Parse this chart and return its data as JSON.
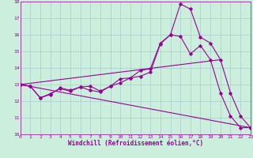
{
  "title": "",
  "xlabel": "Windchill (Refroidissement éolien,°C)",
  "ylabel": "",
  "background_color": "#cceedd",
  "grid_color": "#aacccc",
  "line_color": "#990099",
  "x_min": 0,
  "x_max": 23,
  "y_min": 10,
  "y_max": 18,
  "xticks": [
    0,
    1,
    2,
    3,
    4,
    5,
    6,
    7,
    8,
    9,
    10,
    11,
    12,
    13,
    14,
    15,
    16,
    17,
    18,
    19,
    20,
    21,
    22,
    23
  ],
  "yticks": [
    10,
    11,
    12,
    13,
    14,
    15,
    16,
    17,
    18
  ],
  "line1_x": [
    0,
    1,
    2,
    3,
    4,
    5,
    6,
    7,
    8,
    9,
    10,
    11,
    12,
    13,
    14,
    15,
    16,
    17,
    18,
    19,
    20,
    21,
    22,
    23
  ],
  "line1_y": [
    13.0,
    12.9,
    12.2,
    12.4,
    12.8,
    12.65,
    12.85,
    12.9,
    12.6,
    12.9,
    13.1,
    13.4,
    13.5,
    13.75,
    15.45,
    16.0,
    17.85,
    17.55,
    15.85,
    15.5,
    14.5,
    12.5,
    11.1,
    10.4
  ],
  "line2_x": [
    0,
    1,
    2,
    3,
    4,
    5,
    6,
    7,
    8,
    9,
    10,
    11,
    12,
    13,
    14,
    15,
    16,
    17,
    18,
    19,
    20,
    21,
    22,
    23
  ],
  "line2_y": [
    13.0,
    12.9,
    12.2,
    12.45,
    12.75,
    12.6,
    12.85,
    12.65,
    12.55,
    12.9,
    13.35,
    13.4,
    13.85,
    13.95,
    15.5,
    16.0,
    15.9,
    14.85,
    15.35,
    14.5,
    12.5,
    11.1,
    10.4,
    10.4
  ],
  "line3_x": [
    0,
    20
  ],
  "line3_y": [
    13.0,
    14.5
  ],
  "line4_x": [
    0,
    23
  ],
  "line4_y": [
    13.0,
    10.4
  ],
  "marker_size": 1.8,
  "line_width": 0.8,
  "tick_fontsize": 4.5,
  "xlabel_fontsize": 5.5
}
